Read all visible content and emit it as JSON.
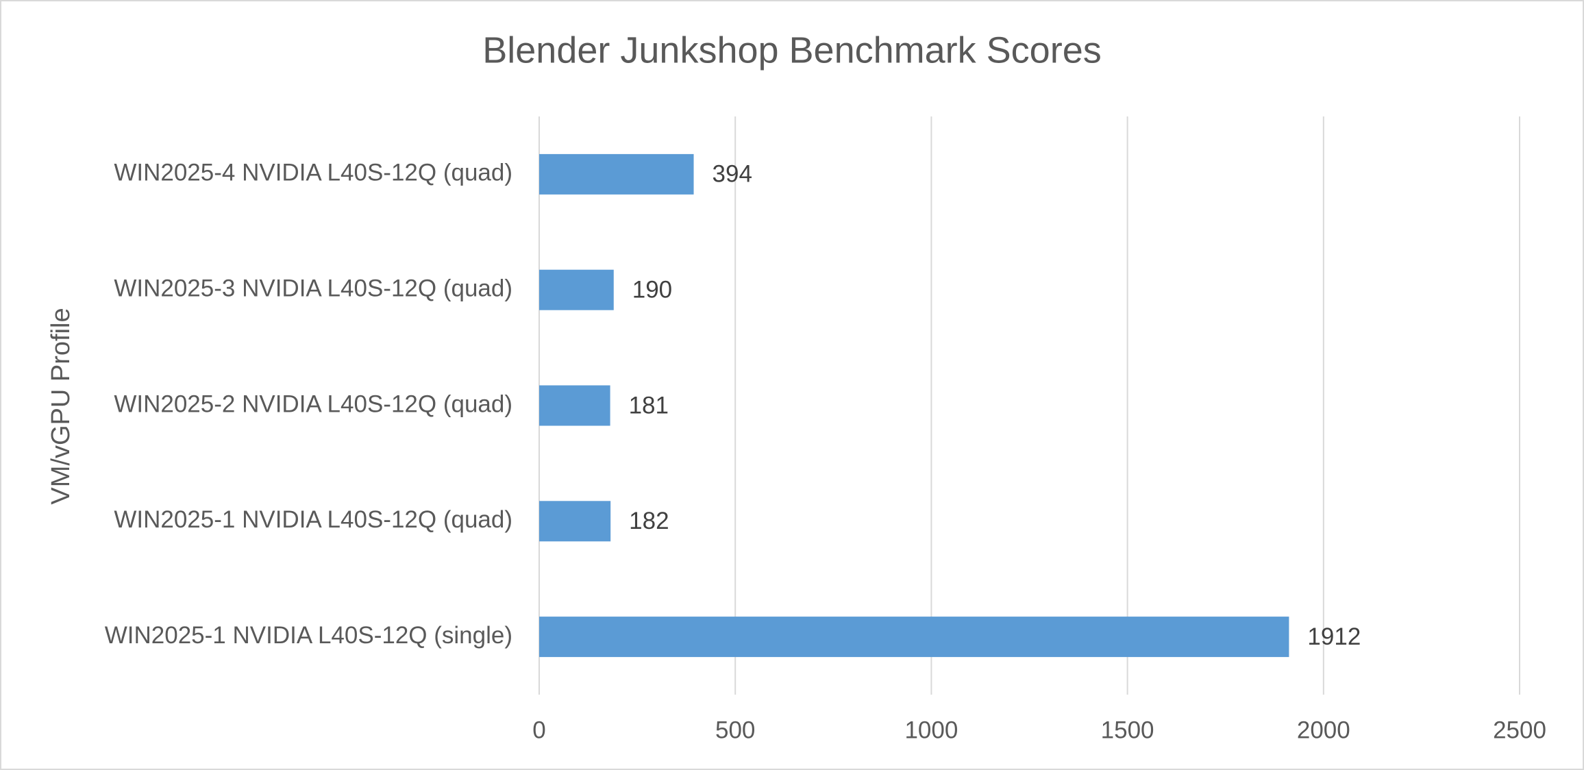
{
  "chart_data": {
    "type": "hbar",
    "title": "Blender Junkshop Benchmark Scores",
    "y_label": "VM/vGPU Profile",
    "categories": [
      "WIN2025-4 NVIDIA L40S-12Q (quad)",
      "WIN2025-3 NVIDIA L40S-12Q (quad)",
      "WIN2025-2 NVIDIA L40S-12Q (quad)",
      "WIN2025-1 NVIDIA L40S-12Q (quad)",
      "WIN2025-1 NVIDIA L40S-12Q (single)"
    ],
    "values": [
      394,
      190,
      181,
      182,
      1912
    ],
    "color": "#5b9bd5",
    "xlim": [
      0,
      2500
    ],
    "xticks": [
      0,
      500,
      1000,
      1500,
      2000,
      2500
    ],
    "grid": true
  }
}
